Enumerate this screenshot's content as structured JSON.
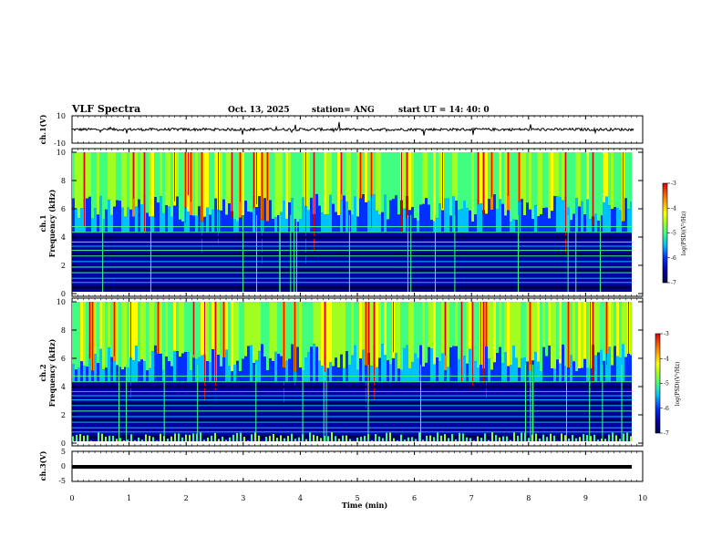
{
  "header": {
    "title": "VLF Spectra",
    "date": "Oct. 13, 2025",
    "station": "station= ANG",
    "start": "start  UT =   14: 40: 0"
  },
  "colors": {
    "trace": "#000000",
    "colormap": [
      "#000050",
      "#0000a0",
      "#0030ff",
      "#00c0ff",
      "#40ff80",
      "#a0ff20",
      "#ffff00",
      "#ff8000",
      "#e00000"
    ]
  },
  "chart_data": [
    {
      "type": "line",
      "name": "ch1-waveform",
      "ylabel": "ch.1(V)",
      "ylim": [
        -10,
        10
      ],
      "yticks": [
        "10",
        "-10"
      ],
      "baseline": 0,
      "xlim": [
        0,
        9.85
      ]
    },
    {
      "type": "heatmap",
      "name": "ch1-spectrogram",
      "ylabel": "ch.1\nFrequency (kHz)",
      "ylabel_channel": "ch.1",
      "ylabel_quantity": "Frequency  (kHz)",
      "ylim": [
        0,
        10
      ],
      "yticks": [
        "0",
        "2",
        "4",
        "6",
        "8",
        "10"
      ],
      "colorbar": {
        "label": "log(PSD)(V²/Hz)",
        "range": [
          -7,
          -3
        ],
        "ticks": [
          "-3",
          "-4",
          "-5",
          "-6",
          "-7"
        ]
      }
    },
    {
      "type": "heatmap",
      "name": "ch2-spectrogram",
      "ylabel": "ch.2\nFrequency (kHz)",
      "ylabel_channel": "ch.2",
      "ylabel_quantity": "Frequency  (kHz)",
      "ylim": [
        0,
        10
      ],
      "yticks": [
        "0",
        "2",
        "4",
        "6",
        "8",
        "10"
      ],
      "colorbar": {
        "label": "log(PSD)(V²/Hz)",
        "range": [
          -7,
          -3
        ],
        "ticks": [
          "-3",
          "-4",
          "-5",
          "-6",
          "-7"
        ]
      }
    },
    {
      "type": "line",
      "name": "ch3-waveform",
      "ylabel": "ch.3(V)",
      "ylim": [
        -5,
        5
      ],
      "yticks": [
        "5",
        "0",
        "-5"
      ],
      "baseline": 0,
      "xlim": [
        0,
        9.85
      ]
    }
  ],
  "xaxis": {
    "label": "Time  (min)",
    "range": [
      0,
      10
    ],
    "ticks": [
      "0",
      "1",
      "2",
      "3",
      "4",
      "5",
      "6",
      "7",
      "8",
      "9",
      "10"
    ]
  }
}
